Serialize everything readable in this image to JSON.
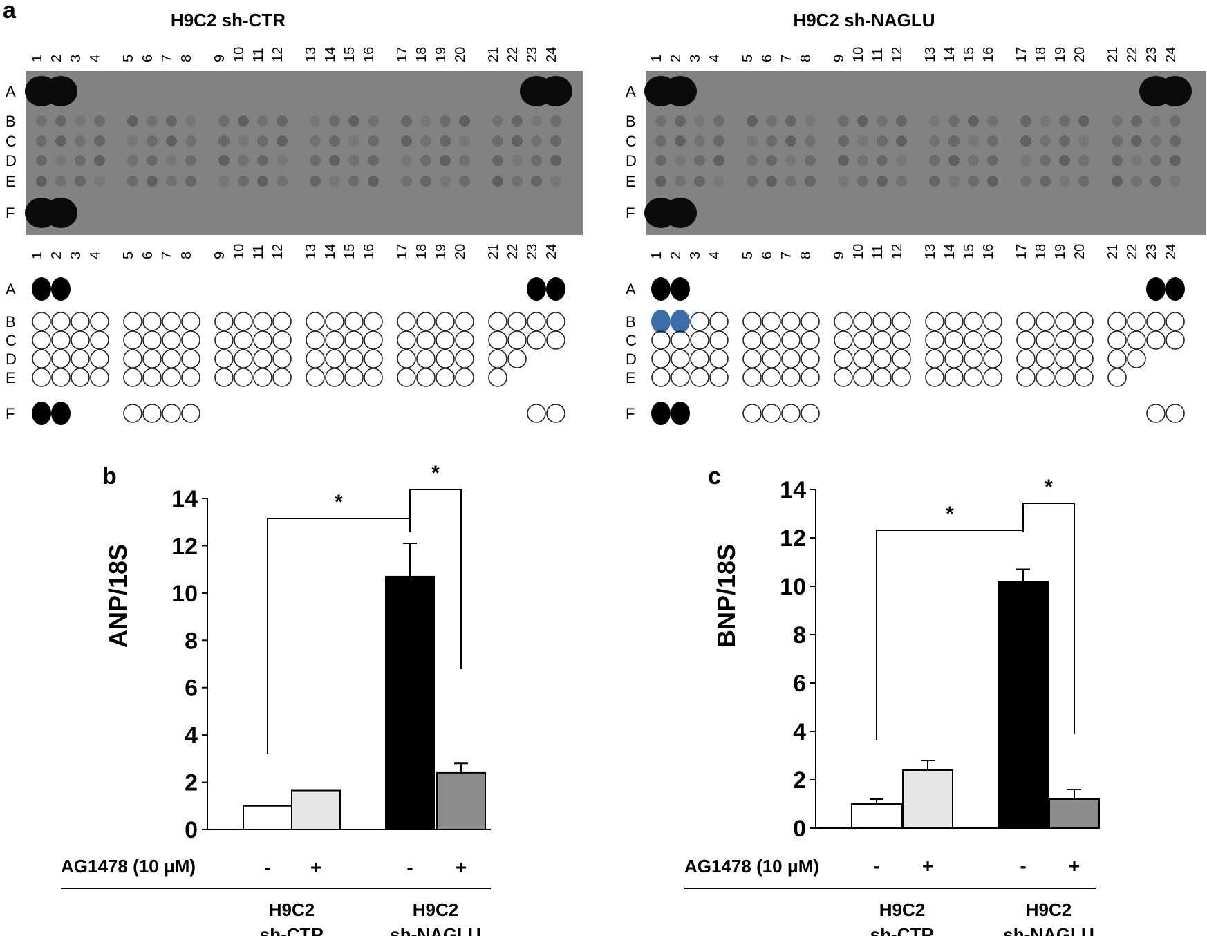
{
  "panel_a": {
    "label": "a",
    "left_title": "H9C2 sh-CTR",
    "right_title": "H9C2 sh-NAGLU",
    "columns": [
      "1",
      "2",
      "3",
      "4",
      "5",
      "6",
      "7",
      "8",
      "9",
      "10",
      "11",
      "12",
      "13",
      "14",
      "15",
      "16",
      "17",
      "18",
      "19",
      "20",
      "21",
      "22",
      "23",
      "24"
    ],
    "rows": [
      "A",
      "B",
      "C",
      "D",
      "E",
      "F"
    ]
  },
  "chart_data": [
    {
      "type": "bar",
      "panel": "b",
      "ylabel": "ANP/18S",
      "ylim": [
        0,
        14
      ],
      "yticks": [
        "0",
        "2",
        "4",
        "6",
        "8",
        "10",
        "12",
        "14"
      ],
      "treatment_label": "AG1478 (10 μM)",
      "treatment_signs": [
        "-",
        "+",
        "-",
        "+"
      ],
      "groups": [
        {
          "line1": "H9C2",
          "line2": "sh-CTR"
        },
        {
          "line1": "H9C2",
          "line2": "sh-NAGLU"
        }
      ],
      "values": [
        1.0,
        1.65,
        10.7,
        2.4
      ],
      "errors": [
        0.0,
        0.0,
        1.4,
        0.4
      ],
      "colors": [
        "#ffffff",
        "#e6e6e6",
        "#000000",
        "#8c8c8c"
      ],
      "significance": [
        {
          "from": 0,
          "to": 2,
          "symbol": "*"
        },
        {
          "from": 2,
          "to": 3,
          "symbol": "*"
        }
      ]
    },
    {
      "type": "bar",
      "panel": "c",
      "ylabel": "BNP/18S",
      "ylim": [
        0,
        14
      ],
      "yticks": [
        "0",
        "2",
        "4",
        "6",
        "8",
        "10",
        "12",
        "14"
      ],
      "treatment_label": "AG1478 (10 μM)",
      "treatment_signs": [
        "-",
        "+",
        "-",
        "+"
      ],
      "groups": [
        {
          "line1": "H9C2",
          "line2": "sh-CTR"
        },
        {
          "line1": "H9C2",
          "line2": "sh-NAGLU"
        }
      ],
      "values": [
        1.0,
        2.4,
        10.2,
        1.2
      ],
      "errors": [
        0.2,
        0.4,
        0.5,
        0.4
      ],
      "colors": [
        "#ffffff",
        "#e6e6e6",
        "#000000",
        "#8c8c8c"
      ],
      "significance": [
        {
          "from": 0,
          "to": 2,
          "symbol": "*"
        },
        {
          "from": 2,
          "to": 3,
          "symbol": "*"
        }
      ]
    }
  ]
}
